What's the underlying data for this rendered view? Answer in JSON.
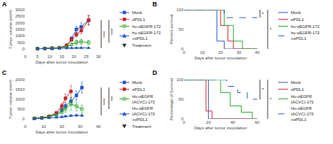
{
  "chart_data": [
    {
      "type": "line",
      "title": "A",
      "xlabel": "Days after tumor inoculation",
      "ylabel": "Tumor volume (mm³)",
      "xlim": [
        0,
        30
      ],
      "ylim": [
        0,
        3000
      ],
      "xticks": [
        0,
        5,
        10,
        15,
        20,
        25,
        30
      ],
      "yticks": [
        0,
        500,
        1000,
        1500,
        2000,
        2500,
        3000
      ],
      "grid": false,
      "legend": "right",
      "series": [
        {
          "name": "Mock",
          "color": "#2255cc",
          "marker": "square",
          "x": [
            5,
            8,
            11,
            14,
            17,
            19,
            21,
            23,
            26
          ],
          "values": [
            20,
            30,
            50,
            80,
            200,
            800,
            1500,
            1700,
            2200
          ],
          "yerr": [
            5,
            8,
            12,
            20,
            50,
            150,
            250,
            300,
            350
          ]
        },
        {
          "name": "αPDL1",
          "color": "#cc2222",
          "marker": "square",
          "x": [
            5,
            8,
            11,
            14,
            17,
            19,
            21,
            23,
            26
          ],
          "values": [
            20,
            35,
            60,
            100,
            280,
            700,
            1100,
            1400,
            2200
          ],
          "yerr": [
            5,
            10,
            15,
            25,
            60,
            120,
            180,
            250,
            380
          ]
        },
        {
          "name": "hu-αEGFR-172",
          "color": "#22aa22",
          "marker": "square-open",
          "x": [
            5,
            8,
            11,
            14,
            17,
            19,
            21,
            23,
            26
          ],
          "values": [
            20,
            30,
            45,
            70,
            150,
            350,
            500,
            550,
            490
          ],
          "yerr": [
            5,
            8,
            12,
            18,
            40,
            100,
            180,
            200,
            160
          ]
        },
        {
          "name": "hu-αEGFR-172\n+αPDL1",
          "color": "#2255cc",
          "marker": "triangle-up",
          "x": [
            5,
            8,
            11,
            14,
            17,
            19,
            21,
            23,
            26
          ],
          "values": [
            18,
            22,
            30,
            40,
            55,
            70,
            80,
            85,
            80
          ],
          "yerr": [
            4,
            5,
            8,
            10,
            14,
            18,
            22,
            24,
            22
          ]
        }
      ],
      "treatment": {
        "name": "Treatment",
        "x": [
          8,
          11,
          17
        ],
        "color": "#333333",
        "marker": "triangle-down"
      },
      "annotations": [
        {
          "text": "****",
          "y": [
            80,
            2200
          ]
        },
        {
          "text": "****",
          "y": [
            490,
            2200
          ]
        }
      ]
    },
    {
      "type": "line",
      "title": "B",
      "xlabel": "Days after tumor inoculation",
      "ylabel": "Percent survival",
      "xlim": [
        0,
        40
      ],
      "ylim": [
        0,
        100
      ],
      "xticks": [
        0,
        10,
        20,
        30,
        40
      ],
      "yticks": [
        0,
        50,
        100
      ],
      "grid": false,
      "legend": "right",
      "series": [
        {
          "name": "Mock",
          "color": "#2255cc",
          "line_style": "solid",
          "x": [
            0,
            18,
            18,
            22,
            22,
            40
          ],
          "values": [
            100,
            100,
            20,
            20,
            0,
            0
          ]
        },
        {
          "name": "αPDL1",
          "color": "#cc2222",
          "line_style": "solid",
          "x": [
            0,
            20,
            20,
            24,
            24,
            27,
            27,
            40
          ],
          "values": [
            100,
            100,
            60,
            60,
            20,
            20,
            0,
            0
          ]
        },
        {
          "name": "hu-αEGFR-172",
          "color": "#22aa22",
          "line_style": "solid",
          "x": [
            0,
            22,
            22,
            27,
            27,
            32,
            32,
            40
          ],
          "values": [
            100,
            100,
            60,
            60,
            20,
            20,
            0,
            0
          ]
        },
        {
          "name": "hu-αEGFR-172\n+αPDL1",
          "color": "#2255cc",
          "line_style": "dash",
          "x": [
            0,
            22,
            22,
            28,
            28,
            40
          ],
          "values": [
            100,
            100,
            80,
            80,
            80,
            80
          ]
        }
      ],
      "annotations": [
        {
          "text": "*",
          "y": [
            80,
            100
          ]
        },
        {
          "text": "*",
          "y": [
            0,
            100
          ]
        }
      ]
    },
    {
      "type": "line",
      "title": "C",
      "xlabel": "Days after tumor inoculation",
      "ylabel": "Tumor volume (mm³)",
      "xlim": [
        0,
        40
      ],
      "ylim": [
        0,
        2000
      ],
      "xticks": [
        0,
        10,
        20,
        30,
        40
      ],
      "yticks": [
        0,
        500,
        1000,
        1500,
        2000
      ],
      "grid": false,
      "legend": "right",
      "series": [
        {
          "name": "Mock",
          "color": "#2255cc",
          "marker": "square",
          "x": [
            5,
            9,
            13,
            17,
            20,
            22,
            25,
            28,
            31
          ],
          "values": [
            20,
            50,
            120,
            250,
            450,
            650,
            900,
            1200,
            1600
          ],
          "yerr": [
            5,
            12,
            30,
            60,
            90,
            130,
            180,
            220,
            280
          ]
        },
        {
          "name": "αPDL1",
          "color": "#cc2222",
          "marker": "square",
          "x": [
            5,
            9,
            13,
            17,
            20,
            22,
            25
          ],
          "values": [
            20,
            55,
            130,
            300,
            650,
            1050,
            1400
          ],
          "yerr": [
            5,
            14,
            35,
            70,
            140,
            220,
            300
          ]
        },
        {
          "name": "Hu-αEGFR\n(ACVC)-172",
          "color": "#22aa22",
          "marker": "square-open",
          "x": [
            5,
            9,
            13,
            17,
            20,
            22,
            25,
            28,
            31
          ],
          "values": [
            20,
            45,
            100,
            200,
            350,
            500,
            750,
            650,
            500
          ],
          "yerr": [
            5,
            12,
            28,
            55,
            100,
            160,
            300,
            250,
            200
          ]
        },
        {
          "name": "Hu-αEGFR\n(ACVC)-172\n+αPDL1",
          "color": "#2255cc",
          "marker": "triangle-up",
          "x": [
            5,
            9,
            13,
            17,
            20,
            22,
            25,
            28,
            31
          ],
          "values": [
            18,
            28,
            45,
            70,
            100,
            130,
            160,
            180,
            170
          ],
          "yerr": [
            4,
            7,
            12,
            18,
            26,
            35,
            42,
            50,
            45
          ]
        }
      ],
      "treatment": {
        "name": "Treatment",
        "x": [
          9,
          17
        ],
        "color": "#333333",
        "marker": "triangle-down"
      },
      "annotations": [
        {
          "text": "****",
          "y": [
            170,
            1600
          ]
        },
        {
          "text": "***",
          "y": [
            500,
            1600
          ]
        }
      ]
    },
    {
      "type": "line",
      "title": "D",
      "xlabel": "Days after tumor inoculation",
      "ylabel": "Percentage of Survival",
      "xlim": [
        0,
        60
      ],
      "ylim": [
        0,
        100
      ],
      "xticks": [
        0,
        20,
        40,
        60
      ],
      "yticks": [
        0,
        50,
        100
      ],
      "grid": false,
      "legend": "right",
      "series": [
        {
          "name": "Mock",
          "color": "#2255cc",
          "line_style": "solid",
          "x": [
            0,
            20,
            20,
            25,
            25,
            60
          ],
          "values": [
            100,
            100,
            0,
            0,
            0,
            0
          ]
        },
        {
          "name": "αPDL1",
          "color": "#cc2222",
          "line_style": "solid",
          "x": [
            0,
            18,
            18,
            23,
            23,
            60
          ],
          "values": [
            100,
            100,
            20,
            20,
            0,
            0
          ]
        },
        {
          "name": "Hu-αEGFR\n(ACVC)-172",
          "color": "#22aa22",
          "line_style": "solid",
          "x": [
            0,
            30,
            30,
            38,
            38,
            47,
            47,
            56,
            56,
            60
          ],
          "values": [
            100,
            100,
            67,
            67,
            33,
            33,
            17,
            17,
            0,
            0
          ]
        },
        {
          "name": "Hu-αEGFR\n(ACVC)-172\n+αPDL1",
          "color": "#2255cc",
          "line_style": "dash",
          "x": [
            0,
            35,
            35,
            44,
            44,
            52,
            52,
            60
          ],
          "values": [
            100,
            100,
            83,
            83,
            67,
            67,
            50,
            50
          ]
        }
      ],
      "annotations": [
        {
          "text": "*",
          "y": [
            50,
            100
          ]
        },
        {
          "text": "*",
          "y": [
            0,
            100
          ]
        }
      ]
    }
  ]
}
